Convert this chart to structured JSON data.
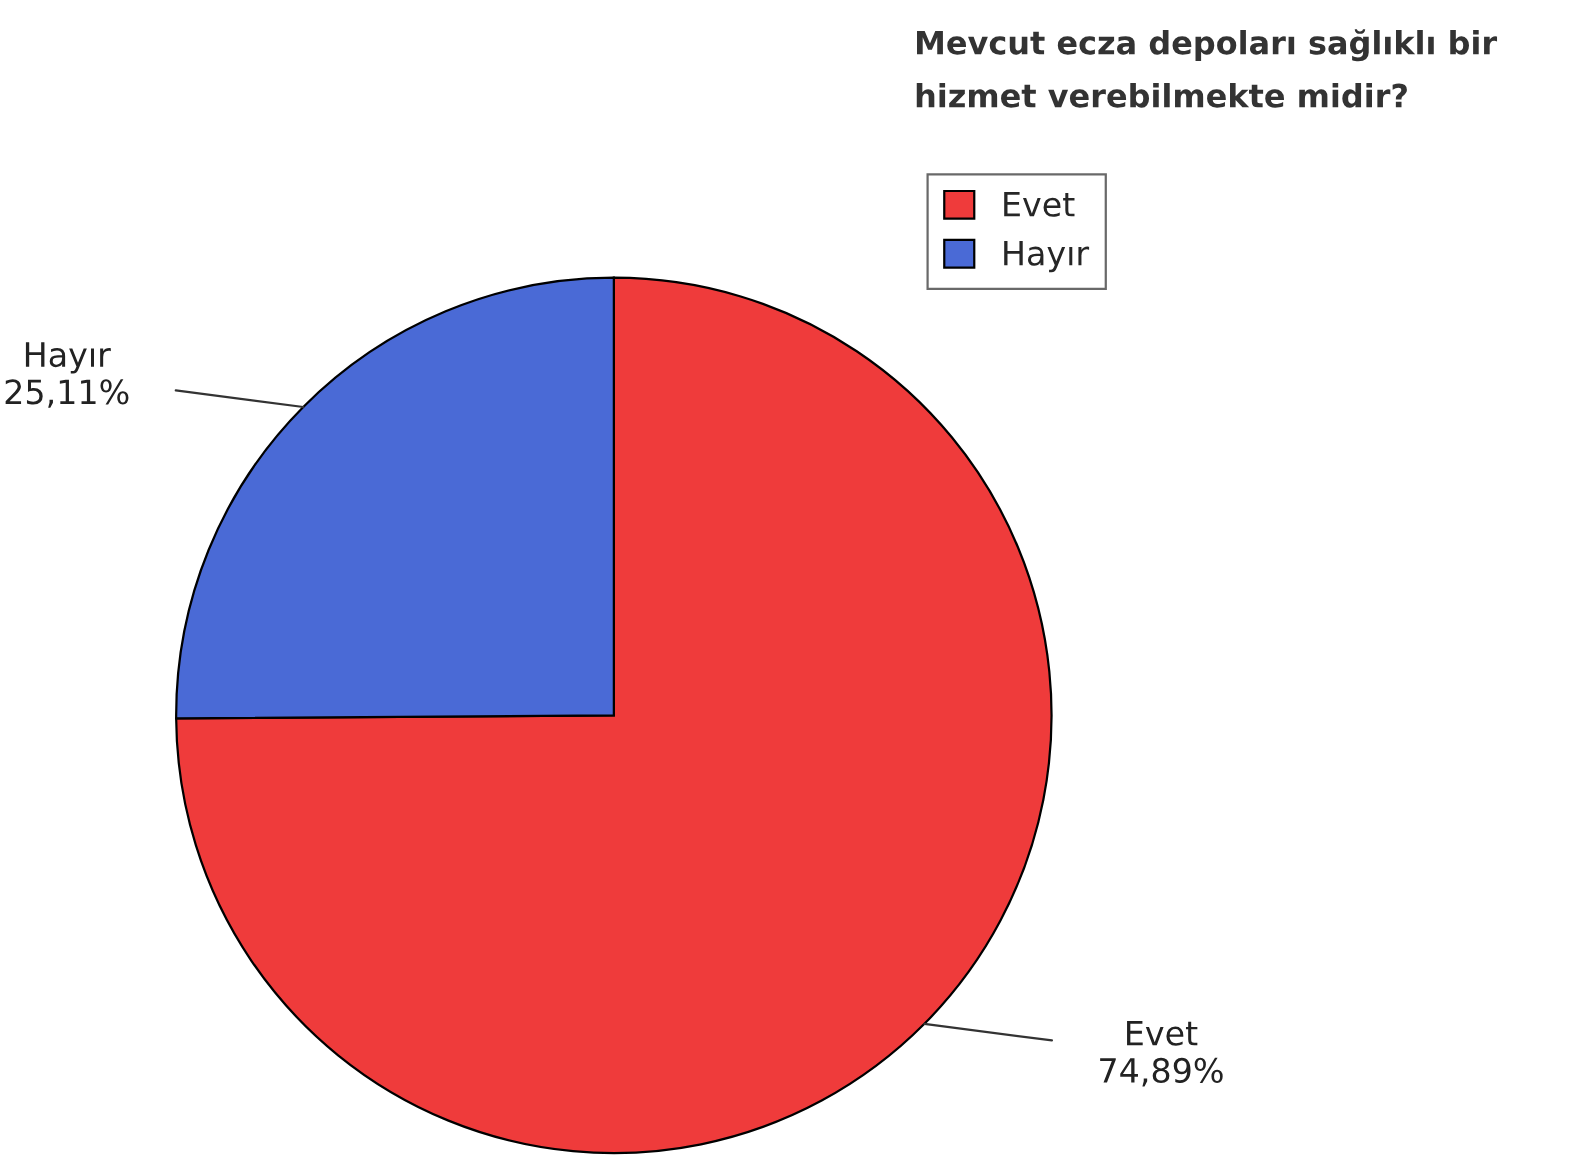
{
  "chart_data": {
    "type": "pie",
    "title": "Mevcut ecza depoları sağlıklı bir hizmet verebilmekte midir?",
    "categories": [
      "Evet",
      "Hayır"
    ],
    "values": [
      74.89,
      25.11
    ],
    "colors": [
      "#ef3b3b",
      "#4a6ad6"
    ],
    "value_labels": [
      "74,89%",
      "25,11%"
    ],
    "legend": "top right"
  }
}
